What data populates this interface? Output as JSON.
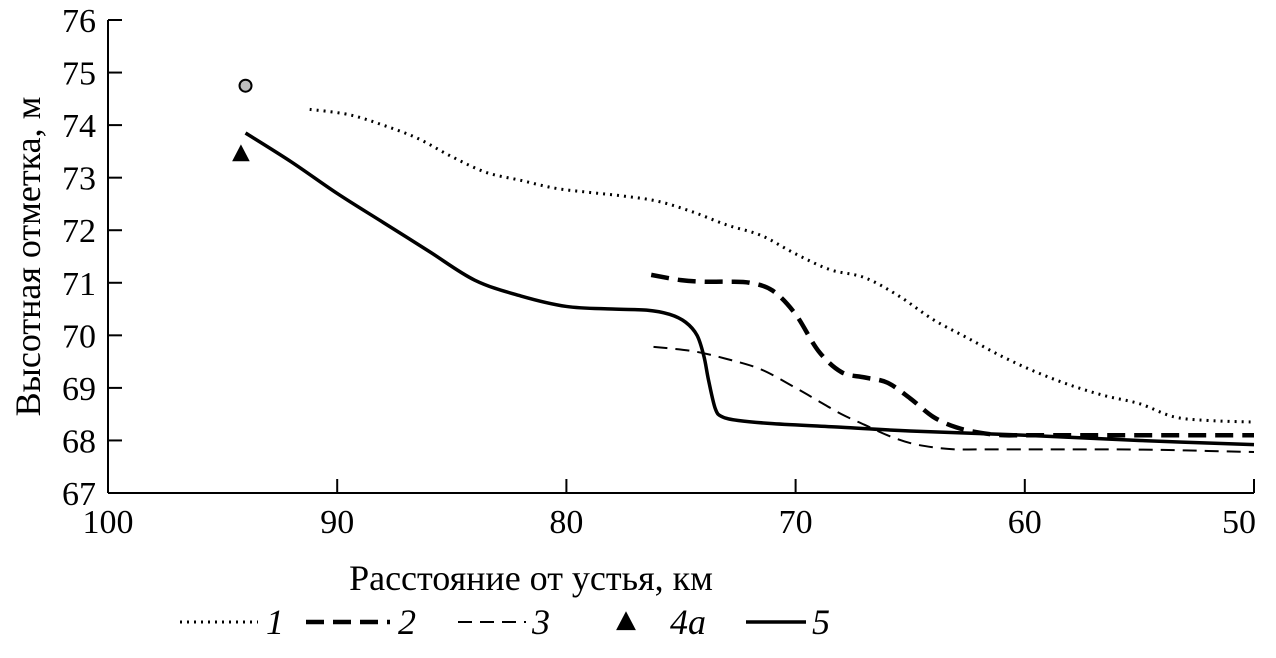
{
  "chart_data": {
    "type": "line",
    "title": "",
    "xlabel": "Расстояние от устья, км",
    "ylabel": "Высотная отметка, м",
    "xlim": [
      100,
      50
    ],
    "ylim": [
      67,
      76
    ],
    "x_reversed": true,
    "xticks": [
      100,
      90,
      80,
      70,
      60,
      50
    ],
    "yticks": [
      67,
      68,
      69,
      70,
      71,
      72,
      73,
      74,
      75,
      76
    ],
    "grid": false,
    "legend_placement": "bottom",
    "series": [
      {
        "name": "1",
        "style": "dotted",
        "x": [
          91.2,
          89.5,
          88.0,
          86.5,
          85.0,
          83.5,
          82.0,
          80.5,
          79.0,
          77.5,
          76.0,
          74.5,
          73.0,
          71.5,
          70.0,
          68.5,
          67.0,
          65.5,
          64.0,
          62.5,
          61.0,
          59.5,
          58.0,
          56.5,
          55.0,
          53.5,
          52.0,
          50.0
        ],
        "y": [
          74.3,
          74.2,
          74.0,
          73.75,
          73.4,
          73.1,
          72.95,
          72.8,
          72.72,
          72.65,
          72.55,
          72.35,
          72.1,
          71.9,
          71.55,
          71.25,
          71.1,
          70.75,
          70.3,
          69.95,
          69.6,
          69.3,
          69.05,
          68.85,
          68.7,
          68.45,
          68.38,
          68.35
        ]
      },
      {
        "name": "2",
        "style": "dashed",
        "x": [
          76.3,
          75.0,
          74.0,
          73.0,
          72.0,
          71.0,
          70.0,
          69.0,
          68.0,
          67.0,
          66.0,
          65.0,
          64.0,
          63.0,
          62.0,
          61.0,
          60.0,
          58.0,
          56.0,
          54.0,
          52.0,
          50.0
        ],
        "y": [
          71.15,
          71.05,
          71.02,
          71.02,
          71.0,
          70.85,
          70.4,
          69.7,
          69.3,
          69.2,
          69.1,
          68.8,
          68.45,
          68.25,
          68.15,
          68.1,
          68.1,
          68.1,
          68.1,
          68.1,
          68.1,
          68.1
        ]
      },
      {
        "name": "3",
        "style": "dashed-thin",
        "x": [
          76.2,
          74.5,
          73.0,
          71.5,
          70.0,
          69.0,
          68.0,
          67.0,
          66.0,
          65.0,
          64.0,
          63.0,
          62.0,
          60.0,
          58.0,
          56.0,
          54.0,
          52.0,
          50.0
        ],
        "y": [
          69.78,
          69.7,
          69.55,
          69.35,
          69.0,
          68.75,
          68.5,
          68.3,
          68.1,
          67.95,
          67.87,
          67.83,
          67.83,
          67.83,
          67.83,
          67.83,
          67.82,
          67.8,
          67.78
        ]
      },
      {
        "name": "4a",
        "style": "marker-triangle",
        "x": [
          94.2
        ],
        "y": [
          73.45
        ]
      },
      {
        "name": "",
        "style": "marker-circle",
        "x": [
          94.0
        ],
        "y": [
          74.75
        ]
      },
      {
        "name": "5",
        "style": "solid",
        "x": [
          94.0,
          92.0,
          90.0,
          88.0,
          86.0,
          84.0,
          82.0,
          80.0,
          78.0,
          76.5,
          75.5,
          74.8,
          74.3,
          74.0,
          73.8,
          73.5,
          73.2,
          72.5,
          71.0,
          68.0,
          65.0,
          60.0,
          55.0,
          50.0
        ],
        "y": [
          73.85,
          73.3,
          72.7,
          72.15,
          71.6,
          71.05,
          70.75,
          70.55,
          70.5,
          70.48,
          70.4,
          70.25,
          70.0,
          69.6,
          69.15,
          68.6,
          68.45,
          68.38,
          68.32,
          68.25,
          68.18,
          68.1,
          68.0,
          67.92
        ]
      }
    ]
  }
}
